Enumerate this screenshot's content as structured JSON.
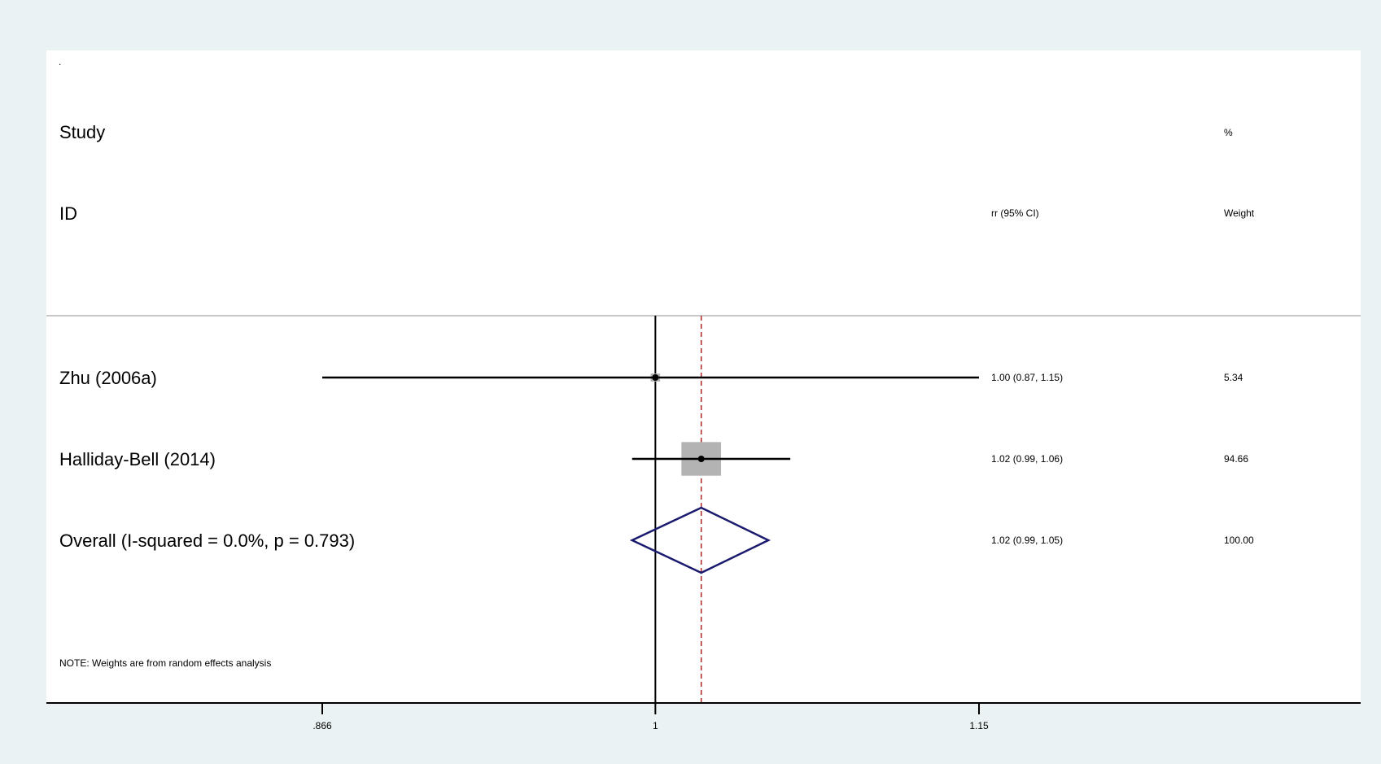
{
  "chart_data": {
    "type": "forest",
    "corner_mark": ".",
    "header": {
      "study_line1": "Study",
      "study_line2": "ID",
      "effect_label": "rr (95% CI)",
      "weight_line1": "%",
      "weight_line2": "Weight"
    },
    "studies": [
      {
        "label": "Zhu (2006a)",
        "estimate": 1.0,
        "ci_low": 0.866,
        "ci_high": 1.15,
        "weight": 5.34,
        "effect_text": "1.00 (0.87, 1.15)",
        "weight_text": "5.34"
      },
      {
        "label": "Halliday-Bell (2014)",
        "estimate": 1.02,
        "ci_low": 0.99,
        "ci_high": 1.06,
        "weight": 94.66,
        "effect_text": "1.02 (0.99, 1.06)",
        "weight_text": "94.66"
      }
    ],
    "overall": {
      "label": "Overall  (I-squared = 0.0%, p = 0.793)",
      "estimate": 1.02,
      "ci_low": 0.99,
      "ci_high": 1.05,
      "effect_text": "1.02 (0.99, 1.05)",
      "weight_text": "100.00"
    },
    "null_value": 1,
    "x_ticks": [
      {
        "value": 0.866,
        "label": ".866"
      },
      {
        "value": 1,
        "label": "1"
      },
      {
        "value": 1.15,
        "label": "1.15"
      }
    ],
    "x_scale": "log",
    "note": "NOTE: Weights are from random effects analysis",
    "colors": {
      "background": "#eaf2f3",
      "plot_bg": "#ffffff",
      "ci_line": "#000000",
      "box": "#b3b3b3",
      "diamond": "#1a1a6e",
      "overall_line": "#b22222"
    }
  }
}
